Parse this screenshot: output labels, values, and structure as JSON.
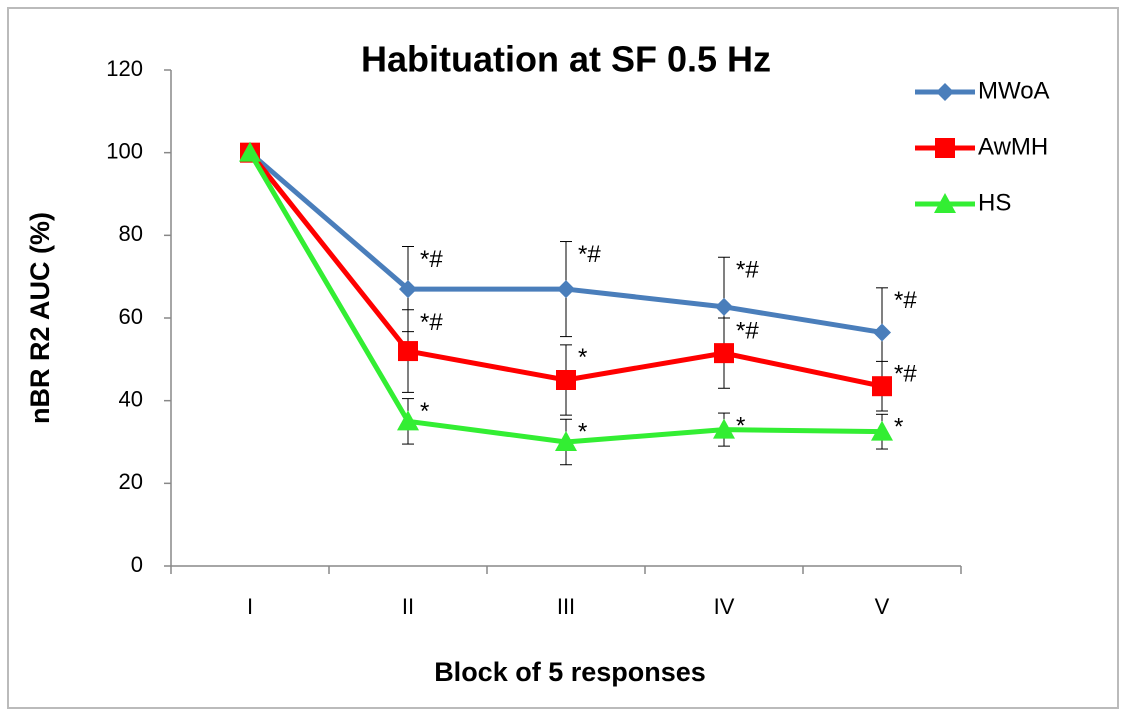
{
  "chart_data": {
    "type": "line",
    "title": "Habituation at SF 0.5 Hz",
    "x_label": "Block of 5 responses",
    "y_label": "nBR R2 AUC (%)",
    "categories": [
      "I",
      "II",
      "III",
      "IV",
      "V"
    ],
    "series": [
      {
        "name": "MWoA",
        "color": "#4a7ebb",
        "marker": "diamond",
        "values": [
          100,
          67,
          67,
          62.7,
          56.5
        ],
        "errors": [
          0,
          10.3,
          11.5,
          12,
          10.8
        ],
        "annotations": [
          null,
          "*#",
          "*#",
          "*#",
          "*#"
        ]
      },
      {
        "name": "AwMH",
        "color": "#ff0000",
        "marker": "square",
        "values": [
          100,
          52,
          45,
          51.5,
          43.5
        ],
        "errors": [
          0,
          10,
          8.5,
          8.5,
          6
        ],
        "annotations": [
          null,
          "*#",
          "*",
          "*#",
          "*#"
        ]
      },
      {
        "name": "HS",
        "color": "#33ee33",
        "marker": "triangle",
        "values": [
          100,
          35,
          30,
          33,
          32.5
        ],
        "errors": [
          0,
          5.5,
          5.5,
          4,
          4.2
        ],
        "annotations": [
          null,
          "*",
          "*",
          "*",
          "*"
        ]
      }
    ],
    "ylim": [
      0,
      120
    ],
    "yticks": [
      0,
      20,
      40,
      60,
      80,
      100,
      120
    ],
    "grid": false,
    "legend": "right"
  }
}
